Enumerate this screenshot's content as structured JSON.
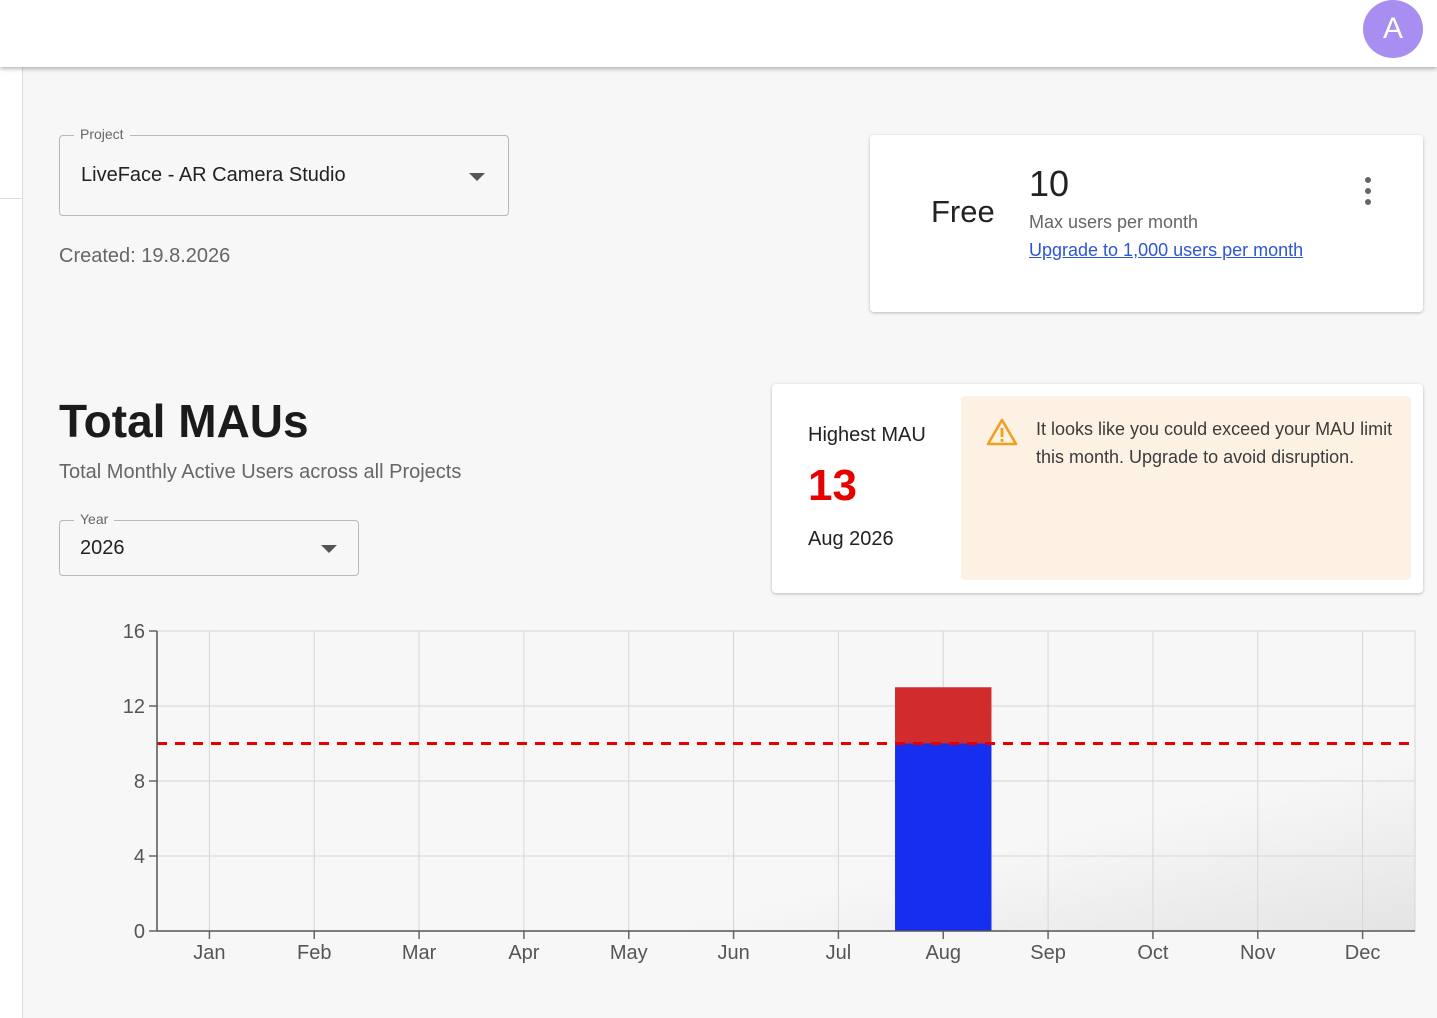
{
  "header": {
    "avatar_initial": "A"
  },
  "project_select": {
    "label": "Project",
    "value": "LiveFace - AR Camera Studio"
  },
  "created_text": "Created: 19.8.2026",
  "plan_card": {
    "plan_name": "Free",
    "max_users": "10",
    "max_users_label": "Max users per month",
    "upgrade_link": "Upgrade to 1,000 users per month"
  },
  "section": {
    "title": "Total MAUs",
    "subtitle": "Total Monthly Active Users across all Projects"
  },
  "year_select": {
    "label": "Year",
    "value": "2026"
  },
  "highest_mau": {
    "label": "Highest MAU",
    "value": "13",
    "date": "Aug 2026",
    "warning": "It looks like you could exceed your MAU limit this month. Upgrade to avoid disruption."
  },
  "colors": {
    "within_limit": "#162ef0",
    "over_limit": "#d12b2b",
    "limit_line": "#e60000",
    "warning_icon": "#f0a020",
    "avatar": "#a88ef0"
  },
  "chart_data": {
    "type": "bar",
    "stacked": true,
    "categories": [
      "Jan",
      "Feb",
      "Mar",
      "Apr",
      "May",
      "Jun",
      "Jul",
      "Aug",
      "Sep",
      "Oct",
      "Nov",
      "Dec"
    ],
    "series": [
      {
        "values": [
          0,
          0,
          0,
          0,
          0,
          0,
          0,
          10,
          0,
          0,
          0,
          0
        ],
        "color": "#162ef0"
      },
      {
        "values": [
          0,
          0,
          0,
          0,
          0,
          0,
          0,
          3,
          0,
          0,
          0,
          0
        ],
        "color": "#d12b2b"
      }
    ],
    "limit": 10,
    "ylim": [
      0,
      16
    ],
    "yticks": [
      0,
      4,
      8,
      12,
      16
    ],
    "grid": true,
    "xlabel": "",
    "ylabel": ""
  }
}
